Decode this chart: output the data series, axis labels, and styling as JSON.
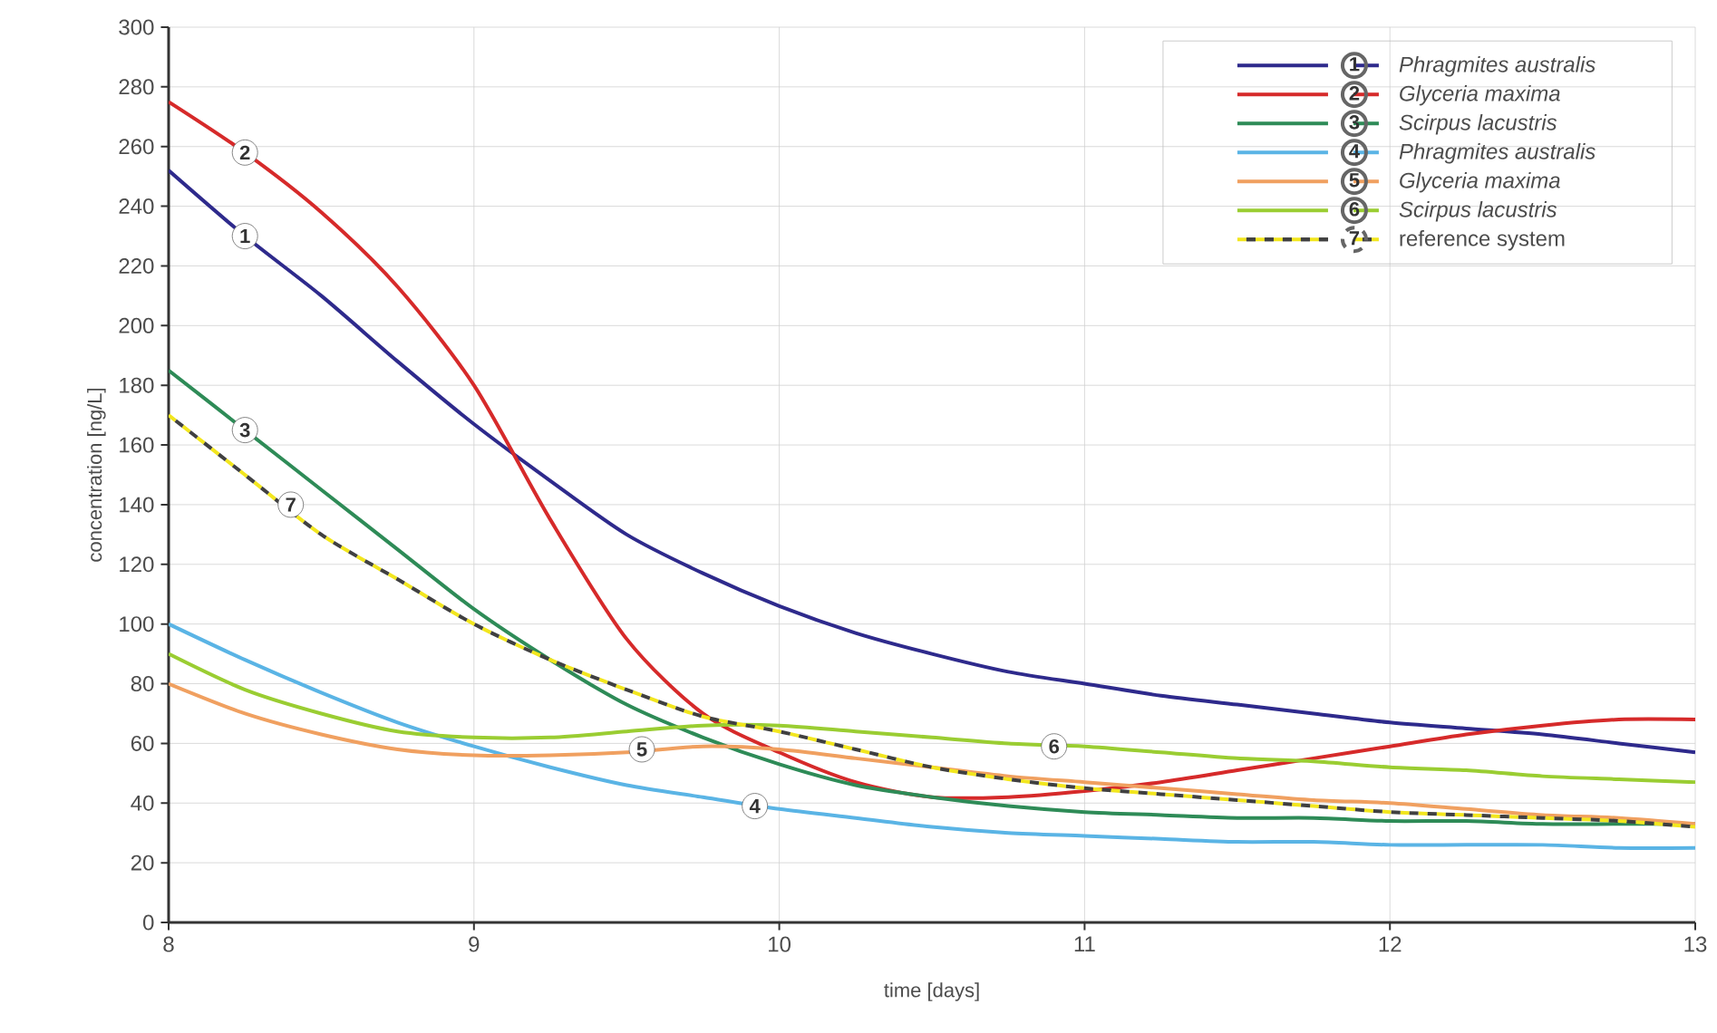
{
  "chart_data": {
    "type": "line",
    "xlabel": "time  [days]",
    "ylabel": "concentration  [ng/L]",
    "xlim": [
      8,
      13
    ],
    "ylim": [
      0,
      300
    ],
    "xticks": [
      8,
      9,
      10,
      11,
      12,
      13
    ],
    "yticks": [
      0,
      20,
      40,
      60,
      80,
      100,
      120,
      140,
      160,
      180,
      200,
      220,
      240,
      260,
      280,
      300
    ],
    "grid": true,
    "legend": "top right",
    "marker": "none",
    "x": [
      8,
      8.25,
      8.5,
      8.75,
      9,
      9.25,
      9.5,
      9.75,
      10,
      10.25,
      10.5,
      10.75,
      11,
      11.25,
      11.5,
      11.75,
      12,
      12.25,
      12.5,
      12.75,
      13
    ],
    "series": [
      {
        "name": "Phragmites australis",
        "color": "#2e2a8c",
        "values": [
          252,
          230,
          210,
          188,
          167,
          148,
          130,
          117,
          106,
          97,
          90,
          84,
          80,
          76,
          73,
          70,
          67,
          65,
          63,
          60,
          57
        ]
      },
      {
        "name": "Glyceria maxima",
        "color": "#d62a2a",
        "values": [
          275,
          258,
          238,
          213,
          180,
          135,
          95,
          70,
          57,
          47,
          42,
          42,
          44,
          47,
          51,
          55,
          59,
          63,
          66,
          68,
          68
        ]
      },
      {
        "name": "Scirpus lacustris",
        "color": "#2e8b57",
        "values": [
          185,
          165,
          145,
          125,
          105,
          88,
          73,
          62,
          53,
          46,
          42,
          39,
          37,
          36,
          35,
          35,
          34,
          34,
          33,
          33,
          33
        ]
      },
      {
        "name": "Phragmites australis",
        "color": "#5ab4e5",
        "values": [
          100,
          88,
          77,
          67,
          59,
          52,
          46,
          42,
          38,
          35,
          32,
          30,
          29,
          28,
          27,
          27,
          26,
          26,
          26,
          25,
          25
        ]
      },
      {
        "name": "Glyceria maxima",
        "color": "#f0a060",
        "values": [
          80,
          70,
          63,
          58,
          56,
          56,
          57,
          59,
          58,
          55,
          52,
          49,
          47,
          45,
          43,
          41,
          40,
          38,
          36,
          35,
          33
        ]
      },
      {
        "name": "Scirpus lacustris",
        "color": "#9acd32",
        "values": [
          90,
          78,
          70,
          64,
          62,
          62,
          64,
          66,
          66,
          64,
          62,
          60,
          59,
          57,
          55,
          54,
          52,
          51,
          49,
          48,
          47
        ]
      },
      {
        "name": "reference system",
        "color": "#f2e61e",
        "line_style": "dashed",
        "values": [
          170,
          150,
          130,
          115,
          100,
          88,
          78,
          69,
          64,
          58,
          52,
          48,
          45,
          43,
          41,
          39,
          37,
          36,
          35,
          34,
          32
        ]
      }
    ],
    "annotations": [
      {
        "text": "1",
        "x": 8.25,
        "y": 230
      },
      {
        "text": "2",
        "x": 8.25,
        "y": 258
      },
      {
        "text": "3",
        "x": 8.25,
        "y": 165
      },
      {
        "text": "4",
        "x": 9.92,
        "y": 39
      },
      {
        "text": "5",
        "x": 9.55,
        "y": 58
      },
      {
        "text": "6",
        "x": 10.9,
        "y": 59
      },
      {
        "text": "7",
        "x": 8.4,
        "y": 140
      }
    ]
  }
}
